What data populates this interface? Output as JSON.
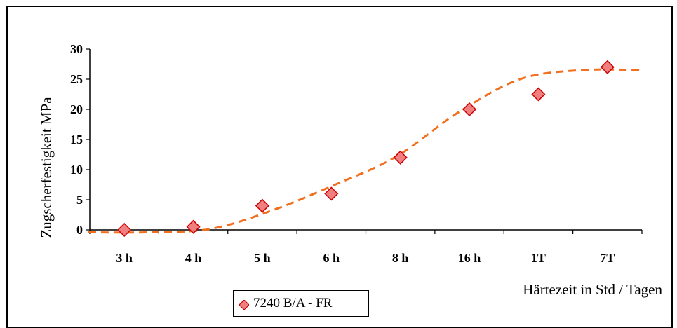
{
  "chart_data": {
    "type": "scatter",
    "categories": [
      "3 h",
      "4 h",
      "5 h",
      "6 h",
      "8 h",
      "16 h",
      "1T",
      "7T"
    ],
    "series": [
      {
        "name": "7240 B/A - FR",
        "values": [
          0,
          0.5,
          4,
          6,
          12,
          20,
          22.5,
          27
        ],
        "marker": "diamond",
        "color": "#f08080",
        "edge_color": "#cc0000"
      }
    ],
    "trendline": {
      "style": "dashed",
      "color": "#f07020",
      "values": [
        -0.4,
        -0.4,
        0.2,
        3.3,
        7.5,
        12.2,
        19.5,
        25.0,
        26.5,
        26.5
      ]
    },
    "title": "",
    "xlabel": "Härtezeit in Std / Tagen",
    "ylabel": "Zugscherfestigkeit MPa",
    "ylim": [
      0,
      30
    ],
    "yticks": [
      "0",
      "5",
      "10",
      "15",
      "20",
      "25",
      "30"
    ],
    "grid": false,
    "legend_position": "bottom"
  }
}
